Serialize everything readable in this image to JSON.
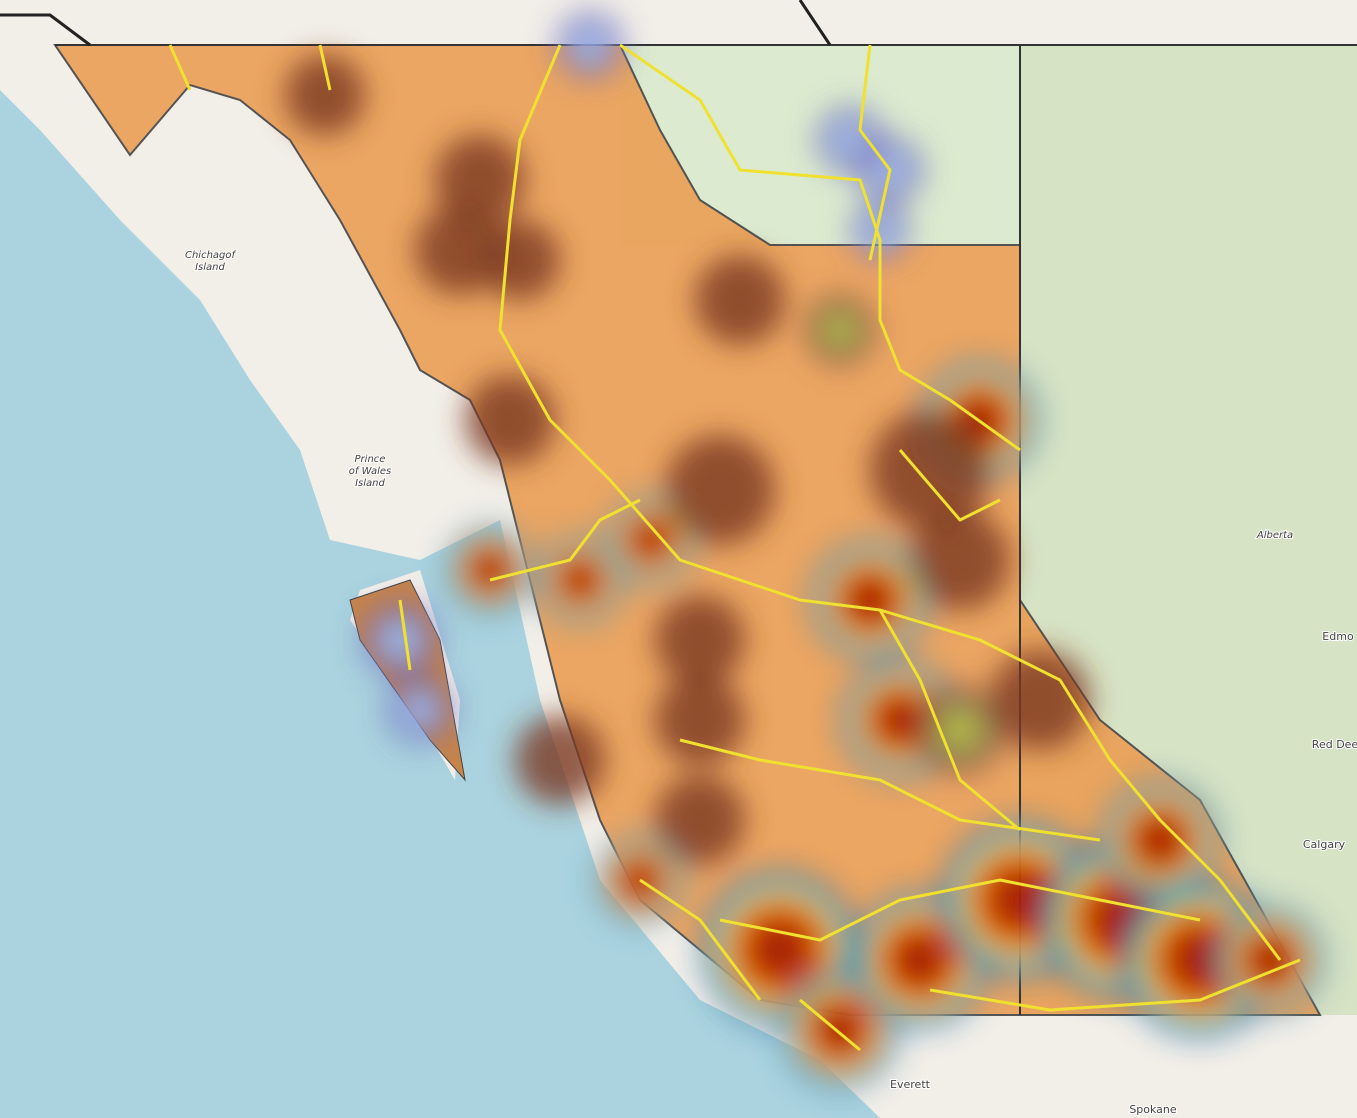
{
  "map_labels": [
    {
      "lines": [
        "Chichagof",
        "Island"
      ]
    },
    {
      "lines": [
        "Prince",
        "of Wales",
        "Island"
      ]
    },
    {
      "lines": [
        "Alberta"
      ]
    },
    {
      "lines": [
        "Edmo"
      ]
    },
    {
      "lines": [
        "Red Dee"
      ]
    },
    {
      "lines": [
        "Calgary"
      ]
    },
    {
      "lines": [
        "Everett"
      ]
    },
    {
      "lines": [
        "Spokane"
      ]
    }
  ]
}
